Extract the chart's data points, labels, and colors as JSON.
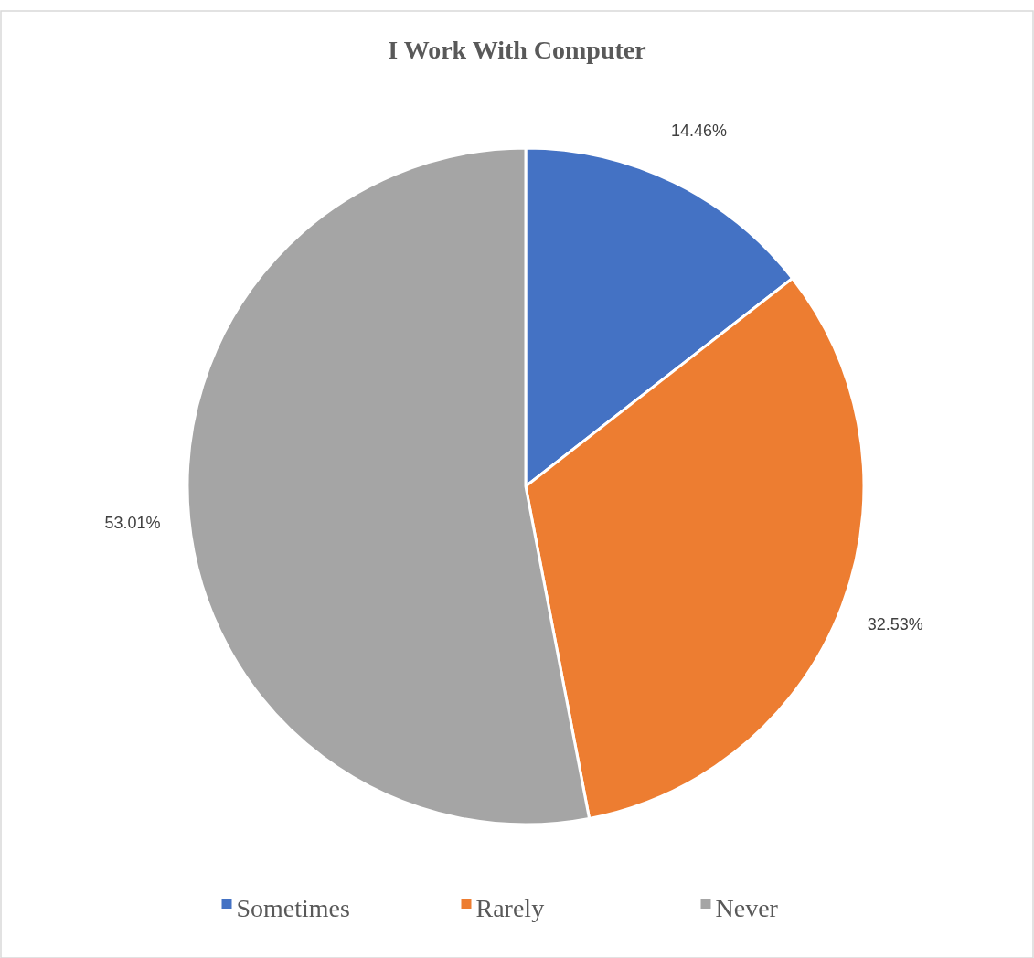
{
  "chart_data": {
    "type": "pie",
    "title": "I Work With Computer",
    "categories": [
      "Sometimes",
      "Rarely",
      "Never"
    ],
    "values": [
      14.46,
      32.53,
      53.01
    ],
    "colors": [
      "#4472c4",
      "#ed7d31",
      "#a5a5a5"
    ],
    "value_labels": [
      "14.46%",
      "32.53%",
      "53.01%"
    ],
    "legend": "bottom"
  }
}
